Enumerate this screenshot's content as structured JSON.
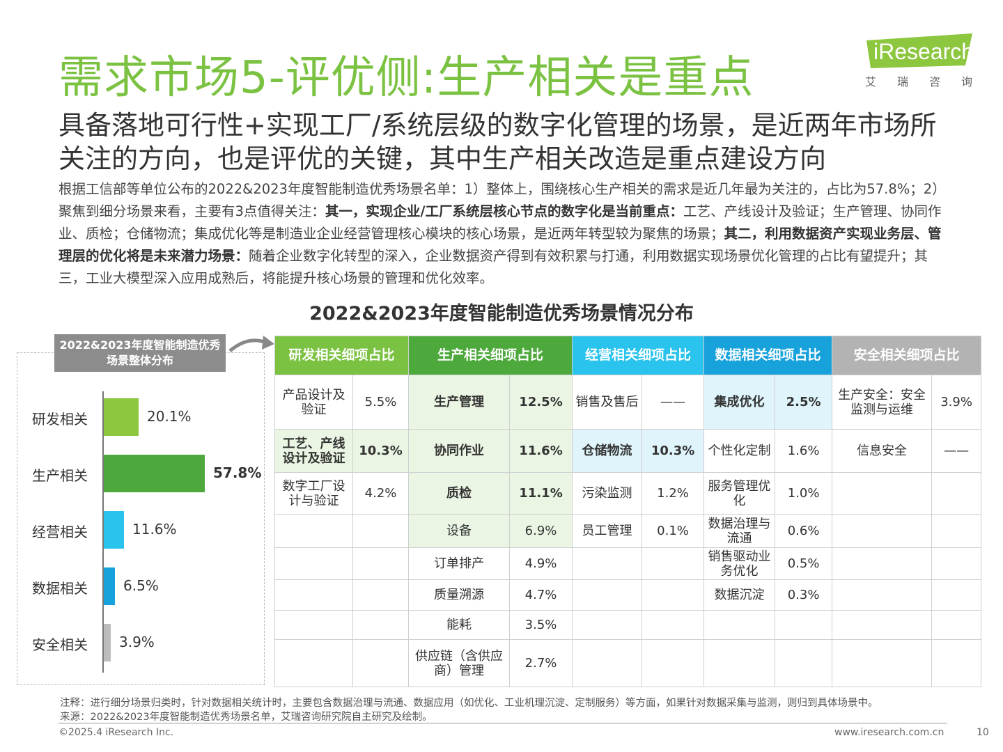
{
  "header": {
    "title": "需求市场5-评优侧:生产相关是重点",
    "logo_text": "iResearch",
    "logo_sub": "艾瑞咨询"
  },
  "subtitle": "具备落地可行性+实现工厂/系统层级的数字化管理的场景，是近两年市场所关注的方向，也是评优的关键，其中生产相关改造是重点建设方向",
  "body": {
    "p1": "根据工信部等单位公布的2022&2023年度智能制造优秀场景名单：1）整体上，围绕核心生产相关的需求是近几年最为关注的，占比为57.8%；2）聚焦到细分场景来看，主要有3点值得关注：",
    "b1": "其一，实现企业/工厂系统层核心节点的数字化是当前重点：",
    "p2": "工艺、产线设计及验证；生产管理、协同作业、质检；仓储物流；集成优化等是制造业企业经营管理核心模块的核心场景，是近两年转型较为聚焦的场景；",
    "b2": "其二，利用数据资产实现业务层、管理层的优化将是未来潜力场景：",
    "p3": "随着企业数字化转型的深入，企业数据资产得到有效积累与打通，利用数据实现场景优化管理的占比有望提升；其三，工业大模型深入应用成熟后，将能提升核心场景的管理和优化效率。"
  },
  "chart_title": "2022&2023年度智能制造优秀场景情况分布",
  "chart_data": [
    {
      "type": "bar",
      "orientation": "horizontal",
      "title": "2022&2023年度智能制造优秀场景整体分布",
      "categories": [
        "研发相关",
        "生产相关",
        "经营相关",
        "数据相关",
        "安全相关"
      ],
      "values": [
        20.1,
        57.8,
        11.6,
        6.5,
        3.9
      ],
      "labels": [
        "20.1%",
        "57.8%",
        "11.6%",
        "6.5%",
        "3.9%"
      ],
      "colors": [
        "#8dc63f",
        "#4ea93c",
        "#29c3ee",
        "#18a2dc",
        "#bdbdbd"
      ],
      "xlim": [
        0,
        100
      ],
      "unit": "%"
    },
    {
      "type": "table",
      "title": "2022&2023年度智能制造优秀场景情况分布",
      "headers": [
        "研发相关细项占比",
        "生产相关细项占比",
        "经营相关细项占比",
        "数据相关细项占比",
        "安全相关细项占比"
      ],
      "rows": [
        [
          [
            "产品设计及验证",
            "5.5%",
            ""
          ],
          [
            "生产管理",
            "12.5%",
            "g"
          ],
          [
            "销售及售后",
            "——",
            ""
          ],
          [
            "集成优化",
            "2.5%",
            "b"
          ],
          [
            "生产安全：安全监测与运维",
            "3.9%",
            ""
          ]
        ],
        [
          [
            "工艺、产线设计及验证",
            "10.3%",
            "g"
          ],
          [
            "协同作业",
            "11.6%",
            "g"
          ],
          [
            "仓储物流",
            "10.3%",
            "b"
          ],
          [
            "个性化定制",
            "1.6%",
            ""
          ],
          [
            "信息安全",
            "——",
            ""
          ]
        ],
        [
          [
            "数字工厂设计与验证",
            "4.2%",
            ""
          ],
          [
            "质检",
            "11.1%",
            "g"
          ],
          [
            "污染监测",
            "1.2%",
            ""
          ],
          [
            "服务管理优化",
            "1.0%",
            ""
          ],
          [
            "",
            "",
            " "
          ]
        ],
        [
          [
            "",
            "",
            ""
          ],
          [
            "设备",
            "6.9%",
            "gl"
          ],
          [
            "员工管理",
            "0.1%",
            ""
          ],
          [
            "数据治理与流通",
            "0.6%",
            ""
          ],
          [
            "",
            "",
            ""
          ]
        ],
        [
          [
            "",
            "",
            ""
          ],
          [
            "订单排产",
            "4.9%",
            ""
          ],
          [
            "",
            "",
            ""
          ],
          [
            "销售驱动业务优化",
            "0.5%",
            ""
          ],
          [
            "",
            "",
            ""
          ]
        ],
        [
          [
            "",
            "",
            ""
          ],
          [
            "质量溯源",
            "4.7%",
            ""
          ],
          [
            "",
            "",
            ""
          ],
          [
            "数据沉淀",
            "0.3%",
            ""
          ],
          [
            "",
            "",
            ""
          ]
        ],
        [
          [
            "",
            "",
            ""
          ],
          [
            "能耗",
            "3.5%",
            ""
          ],
          [
            "",
            "",
            ""
          ],
          [
            "",
            "",
            ""
          ],
          [
            "",
            "",
            ""
          ]
        ],
        [
          [
            "",
            "",
            ""
          ],
          [
            "供应链（含供应商）管理",
            "2.7%",
            ""
          ],
          [
            "",
            "",
            ""
          ],
          [
            "",
            "",
            ""
          ],
          [
            "",
            "",
            ""
          ]
        ]
      ]
    }
  ],
  "footer": {
    "note": "注释：进行细分场景归类时，针对数据相关统计时，主要包含数据治理与流通、数据应用（如优化、工业机理沉淀、定制服务）等方面，如果针对数据采集与监测，则归到具体场景中。",
    "source": "来源：2022&2023年度智能制造优秀场景名单，艾瑞咨询研究院自主研究及绘制。",
    "copyright": "©2025.4 iResearch Inc.",
    "website": "www.iresearch.com.cn",
    "page": "10"
  },
  "colors": {
    "brand_green": "#7cc242",
    "dark_green": "#4ea93c",
    "cyan": "#29c3ee",
    "blue": "#18a2dc",
    "grey": "#b3b3b3"
  }
}
